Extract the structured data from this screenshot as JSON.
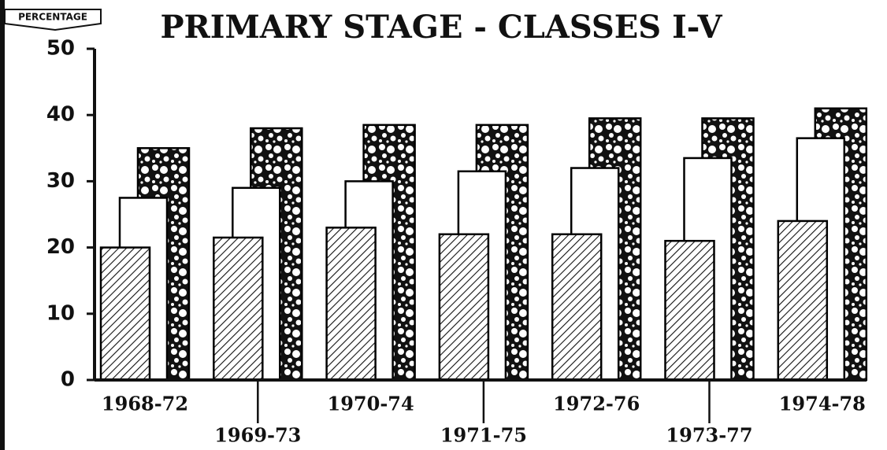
{
  "chart_data": {
    "type": "bar",
    "title": "PRIMARY STAGE - CLASSES I-V",
    "y_label": "PERCENTAGE",
    "categories": [
      "1968-72",
      "1969-73",
      "1970-74",
      "1971-75",
      "1972-76",
      "1973-77",
      "1974-78"
    ],
    "series": [
      {
        "color": "#000000",
        "pattern": "hatch",
        "values": [
          20,
          21.5,
          23,
          22,
          22,
          21,
          24
        ]
      },
      {
        "color": "#000000",
        "pattern": "blank",
        "values": [
          27.5,
          29,
          30,
          31.5,
          32,
          33.5,
          36.5
        ]
      },
      {
        "color": "#000000",
        "pattern": "dots",
        "values": [
          35,
          38,
          38.5,
          38.5,
          39.5,
          39.5,
          41
        ]
      }
    ],
    "ylim": [
      0,
      50
    ],
    "yticks": [
      0,
      10,
      20,
      30,
      40,
      50
    ],
    "grid": false
  }
}
